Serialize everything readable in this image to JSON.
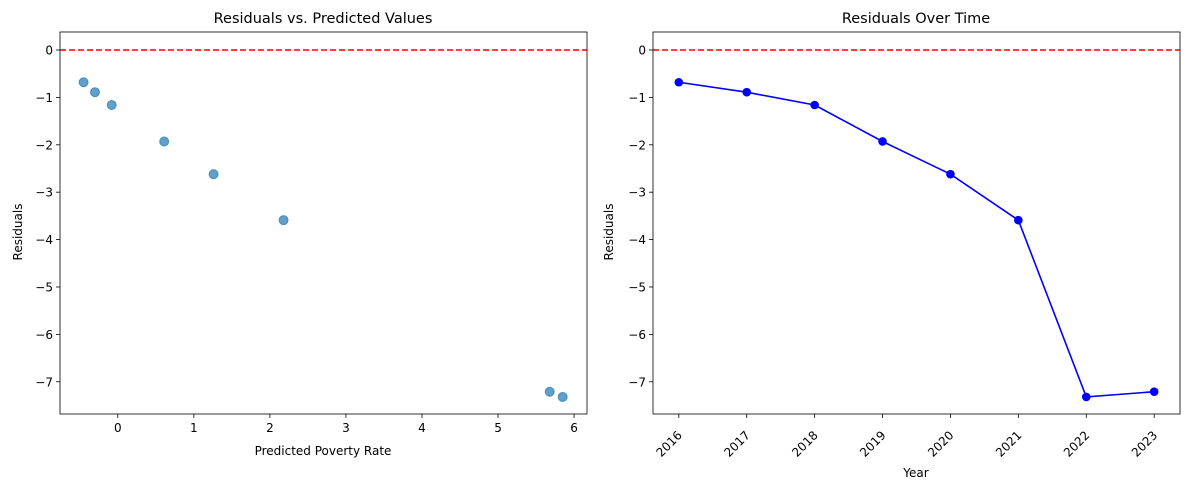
{
  "chart_data": [
    {
      "type": "scatter",
      "title": "Residuals vs. Predicted Values",
      "xlabel": "Predicted Poverty Rate",
      "ylabel": "Residuals",
      "xlim": [
        -0.76,
        6.17
      ],
      "ylim": [
        -7.68,
        0.38
      ],
      "xticks": [
        0,
        1,
        2,
        3,
        4,
        5,
        6
      ],
      "yticks": [
        0,
        -1,
        -2,
        -3,
        -4,
        -5,
        -6,
        -7
      ],
      "reference_line": {
        "y": 0,
        "color": "#ff0000",
        "style": "dashed"
      },
      "point_color": "#1f77b4",
      "point_alpha": 0.7,
      "grid": false,
      "x": [
        -0.45,
        -0.3,
        -0.08,
        0.61,
        1.26,
        2.18,
        5.68,
        5.85
      ],
      "y": [
        -0.68,
        -0.89,
        -1.16,
        -1.93,
        -2.62,
        -3.59,
        -7.21,
        -7.32
      ]
    },
    {
      "type": "line",
      "title": "Residuals Over Time",
      "xlabel": "Year",
      "ylabel": "Residuals",
      "xlim": [
        2015.62,
        2023.38
      ],
      "ylim": [
        -7.68,
        0.38
      ],
      "categories": [
        "2016",
        "2017",
        "2018",
        "2019",
        "2020",
        "2021",
        "2022",
        "2023"
      ],
      "x": [
        2016,
        2017,
        2018,
        2019,
        2020,
        2021,
        2022,
        2023
      ],
      "yticks": [
        0,
        -1,
        -2,
        -3,
        -4,
        -5,
        -6,
        -7
      ],
      "reference_line": {
        "y": 0,
        "color": "#ff0000",
        "style": "dashed"
      },
      "line_color": "#0000ff",
      "marker": "circle",
      "grid": false,
      "values": [
        -0.68,
        -0.89,
        -1.16,
        -1.93,
        -2.62,
        -3.59,
        -7.32,
        -7.21
      ]
    }
  ]
}
